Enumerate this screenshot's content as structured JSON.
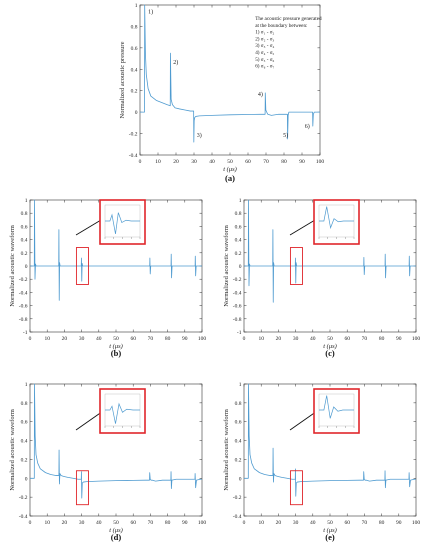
{
  "colors": {
    "signal": "#4f9bd0",
    "highlight": "#e0262b",
    "axis": "#333333",
    "arrow": "#111111"
  },
  "chart_data": [
    {
      "id": "a",
      "type": "line",
      "panel_label": "(a)",
      "xlabel": "t (μs)",
      "ylabel": "Normalized acoustic pressure",
      "xlim": [
        0,
        100
      ],
      "ylim": [
        -0.4,
        1.0
      ],
      "xticks": [
        0,
        10,
        20,
        30,
        40,
        50,
        60,
        70,
        80,
        90,
        100
      ],
      "yticks": [
        -0.4,
        -0.2,
        0,
        0.2,
        0.4,
        0.6,
        0.8,
        1.0
      ],
      "grid": false,
      "series": [
        {
          "x": [
            0,
            2.5,
            2.6,
            3.0,
            3.5,
            4.5,
            6,
            9,
            12,
            15,
            16.8,
            16.9,
            17.3,
            18,
            19.5,
            22,
            25,
            28,
            29.8,
            29.9,
            30.1,
            30.4,
            31,
            33,
            40,
            50,
            60,
            67,
            69.5,
            69.6,
            69.9,
            70.4,
            71,
            73,
            77,
            81.9,
            82.0,
            82.3,
            82.7,
            85,
            90,
            95.9,
            96.0,
            96.3,
            96.8,
            99,
            100
          ],
          "y": [
            0,
            0,
            1.0,
            0.55,
            0.35,
            0.22,
            0.15,
            0.11,
            0.09,
            0.07,
            0.06,
            0.55,
            0.12,
            0.07,
            0.04,
            0.03,
            0.02,
            0.01,
            0.01,
            -0.28,
            -0.08,
            -0.05,
            -0.04,
            -0.035,
            -0.03,
            -0.025,
            -0.022,
            -0.02,
            -0.02,
            0.18,
            0.02,
            0.0,
            -0.02,
            -0.03,
            -0.02,
            -0.02,
            -0.25,
            -0.03,
            0.0,
            0.0,
            0.0,
            0.0,
            -0.13,
            -0.02,
            0.0,
            0.0,
            0.0
          ]
        }
      ],
      "annotations": [
        {
          "text": "1)",
          "x": 4.5,
          "y": 0.92
        },
        {
          "text": "2)",
          "x": 18.5,
          "y": 0.45
        },
        {
          "text": "3)",
          "x": 31.5,
          "y": -0.23
        },
        {
          "text": "4)",
          "x": 65.5,
          "y": 0.15
        },
        {
          "text": "5)",
          "x": 79.5,
          "y": -0.23
        },
        {
          "text": "6)",
          "x": 91.5,
          "y": -0.15
        }
      ],
      "legend_text": [
        "The acoustic pressure generated",
        "at the boundary between:",
        "1) σ₁ - σ₂",
        "2) σ₂ - σ₃",
        "3) σ₃ - σ₄",
        "4) σ₄ - σ₅",
        "5) σ₅ - σ₆",
        "6) σ₆ - σ₇"
      ],
      "legend_placement": "top-right"
    },
    {
      "id": "b",
      "type": "line",
      "panel_label": "(b)",
      "xlabel": "t (μs)",
      "ylabel": "Normalized acoustic waveform",
      "xlim": [
        0,
        100
      ],
      "ylim": [
        -1,
        1
      ],
      "xticks": [
        0,
        10,
        20,
        30,
        40,
        50,
        60,
        70,
        80,
        90,
        100
      ],
      "yticks": [
        -1,
        -0.8,
        -0.6,
        -0.4,
        -0.2,
        0,
        0.2,
        0.4,
        0.6,
        0.8,
        1
      ],
      "grid": false,
      "series": [
        {
          "x": [
            0,
            2.5,
            2.6,
            2.9,
            3.2,
            3.5,
            16.7,
            16.8,
            17.0,
            17.2,
            17.5,
            29.8,
            29.9,
            30.1,
            30.3,
            30.6,
            69.6,
            69.7,
            69.9,
            70.2,
            82.0,
            82.1,
            82.3,
            82.6,
            96.0,
            96.1,
            96.3,
            96.6,
            100
          ],
          "y": [
            0,
            0,
            1.0,
            -0.2,
            0.03,
            0,
            0,
            0.55,
            -0.52,
            0.05,
            0,
            0,
            0.12,
            -0.23,
            0.04,
            0,
            0,
            0.12,
            -0.12,
            0,
            0,
            0.18,
            -0.18,
            0,
            0,
            0.15,
            -0.15,
            0,
            0
          ]
        }
      ],
      "highlight_box": {
        "x0": 27,
        "x1": 34,
        "y0": -0.28,
        "y1": 0.28
      },
      "inset_series": {
        "x": [
          0,
          0.14,
          0.2,
          0.3,
          0.38,
          0.48,
          0.6,
          0.75,
          1
        ],
        "y": [
          0,
          0,
          0.4,
          -0.85,
          0.55,
          -0.1,
          0.05,
          0,
          0
        ]
      },
      "inset_ticks": 4
    },
    {
      "id": "c",
      "type": "line",
      "panel_label": "(c)",
      "xlabel": "t (μs)",
      "ylabel": "Normalized acoustic waveform",
      "xlim": [
        0,
        100
      ],
      "ylim": [
        -1,
        1
      ],
      "xticks": [
        0,
        10,
        20,
        30,
        40,
        50,
        60,
        70,
        80,
        90,
        100
      ],
      "yticks": [
        -1,
        -0.8,
        -0.6,
        -0.4,
        -0.2,
        0,
        0.2,
        0.4,
        0.6,
        0.8,
        1
      ],
      "grid": false,
      "series": [
        {
          "x": [
            0,
            2.5,
            2.6,
            2.9,
            3.2,
            3.5,
            16.7,
            16.8,
            17.0,
            17.2,
            17.5,
            29.8,
            29.9,
            30.1,
            30.3,
            30.6,
            69.6,
            69.7,
            69.9,
            70.2,
            82.0,
            82.1,
            82.3,
            82.6,
            96.0,
            96.1,
            96.3,
            96.6,
            100
          ],
          "y": [
            0,
            0,
            1.0,
            -0.3,
            0.03,
            0,
            0,
            0.55,
            -0.55,
            0.05,
            0,
            0,
            0.12,
            -0.26,
            0.05,
            0,
            0,
            0.13,
            -0.13,
            0,
            0,
            0.18,
            -0.18,
            0,
            0,
            0.15,
            -0.15,
            0,
            0
          ]
        }
      ],
      "highlight_box": {
        "x0": 27,
        "x1": 34,
        "y0": -0.28,
        "y1": 0.28
      },
      "inset_series": {
        "x": [
          0,
          0.14,
          0.22,
          0.33,
          0.43,
          0.55,
          0.7,
          1
        ],
        "y": [
          0,
          0,
          0.95,
          -0.45,
          0.15,
          -0.05,
          0,
          0
        ]
      },
      "inset_ticks": 4
    },
    {
      "id": "d",
      "type": "line",
      "panel_label": "(d)",
      "xlabel": "t (μs)",
      "ylabel": "Normalized acoustic waveform",
      "xlim": [
        0,
        100
      ],
      "ylim": [
        -0.4,
        1.0
      ],
      "xticks": [
        0,
        10,
        20,
        30,
        40,
        50,
        60,
        70,
        80,
        90,
        100
      ],
      "yticks": [
        -0.4,
        -0.2,
        0,
        0.2,
        0.4,
        0.6,
        0.8,
        1
      ],
      "grid": false,
      "series": [
        {
          "x": [
            0,
            2.5,
            2.6,
            3.0,
            3.5,
            4.5,
            6,
            9,
            12,
            15,
            16.8,
            16.9,
            17.1,
            17.4,
            18,
            19.5,
            22,
            25,
            28,
            29.8,
            29.9,
            30.1,
            30.4,
            31,
            33,
            40,
            50,
            60,
            67,
            69.5,
            69.6,
            69.9,
            70.4,
            71,
            73,
            77,
            81.9,
            82.0,
            82.2,
            82.5,
            85,
            90,
            95.9,
            96.0,
            96.3,
            96.8,
            99,
            100
          ],
          "y": [
            0,
            0,
            1.0,
            0.45,
            0.25,
            0.16,
            0.1,
            0.06,
            0.04,
            0.03,
            0.03,
            0.3,
            -0.06,
            0.05,
            0.03,
            0.02,
            0.01,
            0.0,
            -0.01,
            -0.01,
            0.07,
            -0.21,
            -0.05,
            -0.04,
            -0.035,
            -0.03,
            -0.025,
            -0.022,
            -0.02,
            -0.02,
            0.06,
            -0.01,
            -0.02,
            -0.02,
            -0.03,
            -0.02,
            -0.02,
            0.07,
            -0.11,
            -0.02,
            -0.01,
            -0.01,
            -0.01,
            0.05,
            -0.1,
            -0.02,
            -0.01,
            -0.01
          ]
        }
      ],
      "highlight_box": {
        "x0": 27,
        "x1": 34,
        "y0": -0.28,
        "y1": 0.08
      },
      "inset_series": {
        "x": [
          0,
          0.14,
          0.2,
          0.3,
          0.4,
          0.5,
          0.62,
          0.8,
          1
        ],
        "y": [
          0,
          0,
          0.25,
          -0.9,
          0.4,
          -0.15,
          0.05,
          0,
          0
        ]
      },
      "inset_ticks": 4
    },
    {
      "id": "e",
      "type": "line",
      "panel_label": "(e)",
      "xlabel": "t (μs)",
      "ylabel": "Normalized acoustic waveform",
      "xlim": [
        0,
        100
      ],
      "ylim": [
        -0.4,
        1.0
      ],
      "xticks": [
        0,
        10,
        20,
        30,
        40,
        50,
        60,
        70,
        80,
        90,
        100
      ],
      "yticks": [
        -0.4,
        -0.2,
        0,
        0.2,
        0.4,
        0.6,
        0.8,
        1
      ],
      "grid": false,
      "series": [
        {
          "x": [
            0,
            2.5,
            2.6,
            3.0,
            3.5,
            4.5,
            6,
            9,
            12,
            15,
            16.8,
            16.9,
            17.1,
            17.4,
            18,
            19.5,
            22,
            25,
            28,
            29.8,
            29.9,
            30.1,
            30.4,
            31,
            33,
            40,
            50,
            60,
            67,
            69.5,
            69.6,
            69.9,
            70.4,
            71,
            73,
            77,
            81.9,
            82.0,
            82.2,
            82.5,
            85,
            90,
            95.9,
            96.0,
            96.3,
            96.8,
            99,
            100
          ],
          "y": [
            0,
            0,
            1.0,
            0.45,
            0.25,
            0.16,
            0.1,
            0.06,
            0.04,
            0.03,
            0.03,
            0.32,
            -0.04,
            0.05,
            0.03,
            0.02,
            0.01,
            0.0,
            -0.01,
            -0.01,
            0.1,
            -0.19,
            -0.05,
            -0.04,
            -0.035,
            -0.03,
            -0.025,
            -0.022,
            -0.02,
            -0.02,
            0.07,
            -0.01,
            -0.02,
            -0.02,
            -0.03,
            -0.02,
            -0.02,
            0.08,
            -0.1,
            -0.02,
            -0.01,
            -0.01,
            -0.01,
            0.06,
            -0.09,
            -0.02,
            -0.01,
            -0.01
          ]
        }
      ],
      "highlight_box": {
        "x0": 27,
        "x1": 34,
        "y0": -0.28,
        "y1": 0.08
      },
      "inset_series": {
        "x": [
          0,
          0.14,
          0.22,
          0.32,
          0.42,
          0.54,
          0.68,
          1
        ],
        "y": [
          0,
          0,
          0.95,
          -0.55,
          0.2,
          -0.08,
          0,
          0
        ]
      },
      "inset_ticks": 4
    }
  ]
}
